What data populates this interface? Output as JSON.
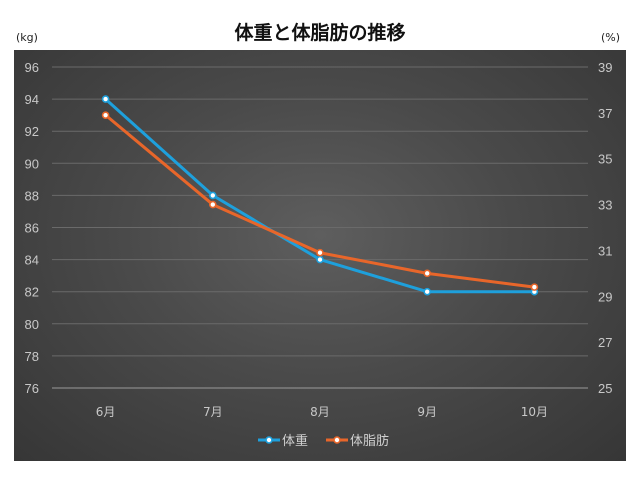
{
  "chart_data": {
    "type": "line",
    "title": "体重と体脂肪の推移",
    "ylabel_left": "(kg)",
    "ylabel_right": "(%)",
    "categories": [
      "6月",
      "7月",
      "8月",
      "9月",
      "10月"
    ],
    "y_left_ticks": [
      "96",
      "94",
      "92",
      "90",
      "88",
      "86",
      "84",
      "82",
      "80",
      "78",
      "76"
    ],
    "y_right_ticks": [
      "39",
      "37",
      "35",
      "33",
      "31",
      "29",
      "27",
      "25"
    ],
    "ylim_left": [
      76,
      96
    ],
    "ylim_right": [
      25,
      39
    ],
    "grid": true,
    "legend_position": "bottom",
    "series": [
      {
        "name": "体重",
        "axis": "left",
        "color": "#1ea0dc",
        "values": [
          94,
          88,
          84,
          82,
          82
        ]
      },
      {
        "name": "体脂肪",
        "axis": "right",
        "color": "#e8662a",
        "values": [
          36.9,
          33.0,
          30.9,
          30.0,
          29.4
        ]
      }
    ]
  }
}
